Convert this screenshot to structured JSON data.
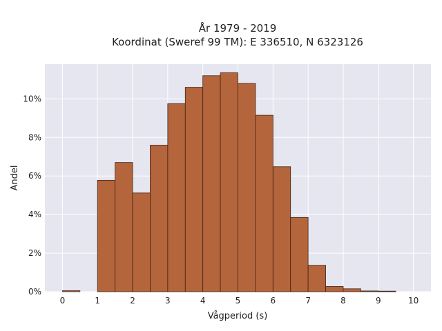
{
  "chart_data": {
    "type": "bar",
    "title": [
      "År 1979 - 2019",
      "Koordinat (Sweref 99 TM): E 336510, N 6323126"
    ],
    "xlabel": "Vågperiod (s)",
    "ylabel": "Andel",
    "bin_width": 0.5,
    "bins": [
      {
        "start": 0.0,
        "value": 0.05
      },
      {
        "start": 0.5,
        "value": 0.0
      },
      {
        "start": 1.0,
        "value": 5.78
      },
      {
        "start": 1.5,
        "value": 6.7
      },
      {
        "start": 2.0,
        "value": 5.12
      },
      {
        "start": 2.5,
        "value": 7.6
      },
      {
        "start": 3.0,
        "value": 9.75
      },
      {
        "start": 3.5,
        "value": 10.6
      },
      {
        "start": 4.0,
        "value": 11.2
      },
      {
        "start": 4.5,
        "value": 11.35
      },
      {
        "start": 5.0,
        "value": 10.8
      },
      {
        "start": 5.5,
        "value": 9.15
      },
      {
        "start": 6.0,
        "value": 6.48
      },
      {
        "start": 6.5,
        "value": 3.85
      },
      {
        "start": 7.0,
        "value": 1.37
      },
      {
        "start": 7.5,
        "value": 0.27
      },
      {
        "start": 8.0,
        "value": 0.15
      },
      {
        "start": 8.5,
        "value": 0.04
      },
      {
        "start": 9.0,
        "value": 0.03
      }
    ],
    "xlim": [
      -0.5,
      10.5
    ],
    "ylim": [
      0,
      11.8
    ],
    "xticks": [
      0,
      1,
      2,
      3,
      4,
      5,
      6,
      7,
      8,
      9,
      10
    ],
    "yticks": [
      0,
      2,
      4,
      6,
      8,
      10
    ],
    "ytick_labels": [
      "0%",
      "2%",
      "4%",
      "6%",
      "8%",
      "10%"
    ],
    "grid": true,
    "colors": {
      "background": "#e5e6f0",
      "bar_fill": "#b5653b",
      "bar_edge": "#3d2417",
      "grid": "#ffffff"
    }
  }
}
